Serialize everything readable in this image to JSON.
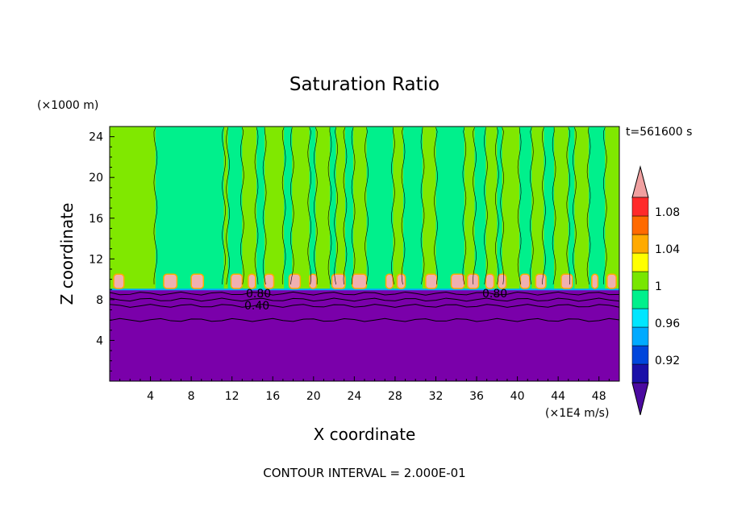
{
  "chart_data": {
    "type": "heatmap",
    "title": "Saturation Ratio",
    "time_label": "t=561600 s",
    "xlabel": "X coordinate",
    "ylabel": "Z coordinate",
    "x_unit": "(×1E4 m/s)",
    "y_unit": "(×1000 m)",
    "xlim": [
      0,
      50
    ],
    "ylim": [
      0,
      25
    ],
    "x_ticks": [
      4,
      8,
      12,
      16,
      20,
      24,
      28,
      32,
      36,
      40,
      44,
      48
    ],
    "y_ticks": [
      4,
      8,
      12,
      16,
      20,
      24
    ],
    "footer": "CONTOUR INTERVAL = 2.000E-01",
    "contour_labels": [
      "0.80",
      "0.40",
      "0.80"
    ],
    "colorbar": {
      "levels": [
        0.92,
        0.96,
        1,
        1.04,
        1.08
      ],
      "level_labels": [
        "0.92",
        "0.96",
        "1",
        "1.04",
        "1.08"
      ],
      "colors": [
        "#4b0aa0",
        "#1a10a8",
        "#0046dc",
        "#00aaff",
        "#00e6ff",
        "#00f08c",
        "#78e600",
        "#ffff00",
        "#ffaa00",
        "#ff6a00",
        "#ff2a2a",
        "#f0a0a0"
      ],
      "extend_low": true,
      "extend_high": true
    },
    "fields": {
      "lower_layer_color": "#7a00aa",
      "lower_layer_top": 9,
      "upper_base_color": "#00f08c",
      "upper_alt_color": "#80e800",
      "cap_color": "#f0b0b0"
    }
  }
}
